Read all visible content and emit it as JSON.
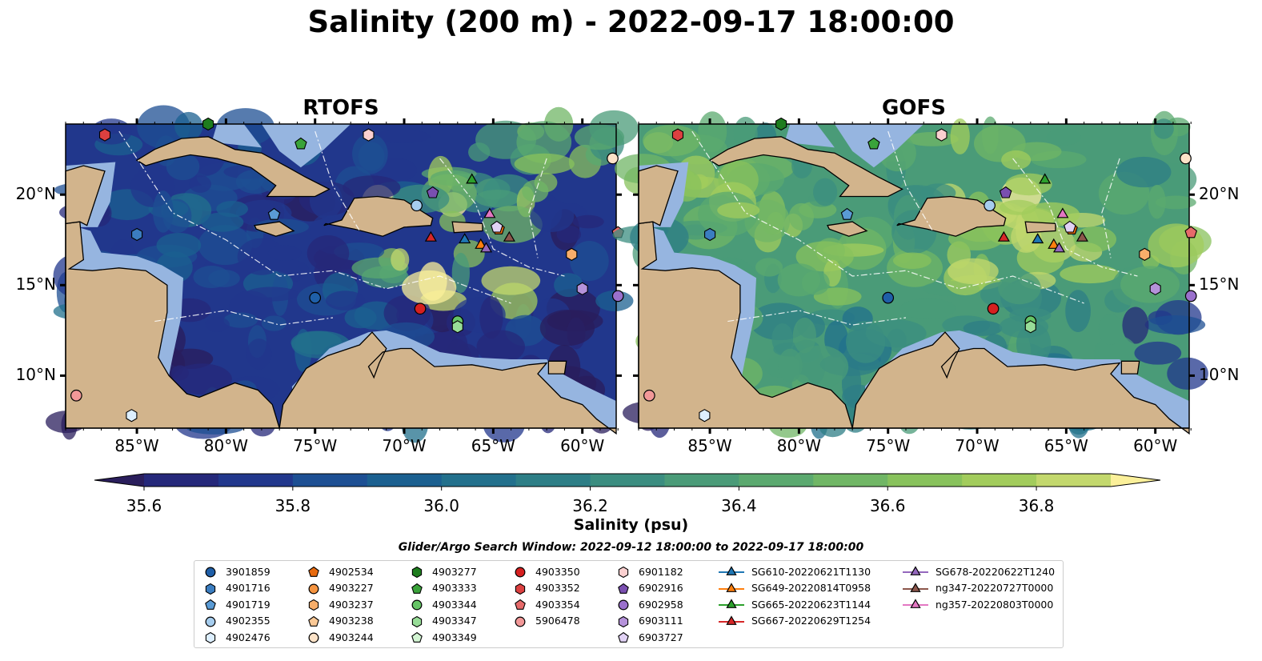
{
  "title": "Salinity (200 m) - 2022-09-17 18:00:00",
  "panels": [
    {
      "title": "RTOFS",
      "model": "rtofs"
    },
    {
      "title": "GOFS",
      "model": "gofs"
    }
  ],
  "lon_ticks": [
    "85°W",
    "80°W",
    "75°W",
    "70°W",
    "65°W",
    "60°W"
  ],
  "lat_ticks": [
    "20°N",
    "15°N",
    "10°N"
  ],
  "colorbar": {
    "label": "Salinity (psu)",
    "tick_labels": [
      "35.6",
      "35.8",
      "36.0",
      "36.2",
      "36.4",
      "36.6",
      "36.8"
    ],
    "colors": [
      "#2a1e5c",
      "#25287a",
      "#21378c",
      "#1d4f93",
      "#1b6090",
      "#22708c",
      "#2d7e86",
      "#3b8d80",
      "#4a9b78",
      "#5ba96f",
      "#70b665",
      "#88c25c",
      "#a2cc5c",
      "#c3d86d",
      "#fbf09a"
    ],
    "extend": "both"
  },
  "colors": {
    "land": "#d2b48c",
    "shelf": "#96b5e0",
    "low_salinity": "#2a1e5c",
    "high_salinity": "#fbf09a"
  },
  "search_window": "Glider/Argo Search Window: 2022-09-12 18:00:00 to 2022-09-17 18:00:00",
  "legend": [
    {
      "label": "3901859",
      "marker": "circle",
      "color": "#1f5fa8"
    },
    {
      "label": "4901716",
      "marker": "hexagon",
      "color": "#3b7dc0"
    },
    {
      "label": "4901719",
      "marker": "pentagon",
      "color": "#5a9bd5"
    },
    {
      "label": "4902355",
      "marker": "circle",
      "color": "#a6cdee"
    },
    {
      "label": "4902476",
      "marker": "hexagon",
      "color": "#ddefff"
    },
    {
      "label": "4902534",
      "marker": "pentagon",
      "color": "#e86a0e"
    },
    {
      "label": "4903227",
      "marker": "circle",
      "color": "#f59440"
    },
    {
      "label": "4903237",
      "marker": "hexagon",
      "color": "#f8ae6a"
    },
    {
      "label": "4903238",
      "marker": "pentagon",
      "color": "#fbc996"
    },
    {
      "label": "4903244",
      "marker": "circle",
      "color": "#fde3c8"
    },
    {
      "label": "4903277",
      "marker": "hexagon",
      "color": "#1e7d1e"
    },
    {
      "label": "4903333",
      "marker": "pentagon",
      "color": "#3aa33a"
    },
    {
      "label": "4903344",
      "marker": "circle",
      "color": "#66c466"
    },
    {
      "label": "4903347",
      "marker": "hexagon",
      "color": "#98dd98"
    },
    {
      "label": "4903349",
      "marker": "pentagon",
      "color": "#d3f5d3"
    },
    {
      "label": "4903350",
      "marker": "circle",
      "color": "#d62020"
    },
    {
      "label": "4903352",
      "marker": "hexagon",
      "color": "#dc4040"
    },
    {
      "label": "4903354",
      "marker": "pentagon",
      "color": "#e66a6a"
    },
    {
      "label": "5906478",
      "marker": "circle",
      "color": "#f29898"
    },
    {
      "label": "6901182",
      "marker": "hexagon",
      "color": "#fbd0d0"
    },
    {
      "label": "6902916",
      "marker": "pentagon",
      "color": "#7a4fb0"
    },
    {
      "label": "6902958",
      "marker": "circle",
      "color": "#9a70cc"
    },
    {
      "label": "6903111",
      "marker": "hexagon",
      "color": "#b592da"
    },
    {
      "label": "6903727",
      "marker": "pentagon",
      "color": "#e1d2f5"
    },
    {
      "label": "SG610-20220621T1130",
      "marker": "triangle",
      "color": "#1f77b4"
    },
    {
      "label": "SG649-20220814T0958",
      "marker": "triangle",
      "color": "#ff7f0e"
    },
    {
      "label": "SG665-20220623T1144",
      "marker": "triangle",
      "color": "#2ca02c"
    },
    {
      "label": "SG667-20220629T1254",
      "marker": "triangle",
      "color": "#d62728"
    },
    {
      "label": "SG678-20220622T1240",
      "marker": "triangle",
      "color": "#9467bd"
    },
    {
      "label": "ng347-20220727T0000",
      "marker": "triangle",
      "color": "#8c564b"
    },
    {
      "label": "ng357-20220803T0000",
      "marker": "triangle",
      "color": "#e377c2"
    }
  ],
  "map_markers": [
    {
      "id": "3901859",
      "lon": -75.0,
      "lat": 14.3
    },
    {
      "id": "4901716",
      "lon": -85.0,
      "lat": 17.8
    },
    {
      "id": "4901719",
      "lon": -77.3,
      "lat": 18.9
    },
    {
      "id": "4902355",
      "lon": -69.3,
      "lat": 19.4
    },
    {
      "id": "4902476",
      "lon": -85.3,
      "lat": 7.8
    },
    {
      "id": "4902534",
      "lon": -64.7,
      "lat": 18.1
    },
    {
      "id": "4903244",
      "lon": -58.3,
      "lat": 22.0
    },
    {
      "id": "4903277",
      "lon": -81.0,
      "lat": 23.9
    },
    {
      "id": "4903333",
      "lon": -75.8,
      "lat": 22.8
    },
    {
      "id": "4903344",
      "lon": -67.0,
      "lat": 13.0
    },
    {
      "id": "4903347",
      "lon": -67.0,
      "lat": 12.7
    },
    {
      "id": "4903350",
      "lon": -69.1,
      "lat": 13.7
    },
    {
      "id": "4903352",
      "lon": -86.8,
      "lat": 23.3
    },
    {
      "id": "4903354",
      "lon": -58.0,
      "lat": 17.9
    },
    {
      "id": "5906478",
      "lon": -88.4,
      "lat": 8.9
    },
    {
      "id": "6901182",
      "lon": -72.0,
      "lat": 23.3
    },
    {
      "id": "6902916",
      "lon": -68.4,
      "lat": 20.1
    },
    {
      "id": "6902958",
      "lon": -58.0,
      "lat": 14.4
    },
    {
      "id": "6903111",
      "lon": -60.0,
      "lat": 14.8
    },
    {
      "id": "6903727",
      "lon": -64.8,
      "lat": 18.2
    },
    {
      "id": "4903237",
      "lon": -60.6,
      "lat": 16.7
    },
    {
      "id": "SG610-20220621T1130",
      "lon": -66.6,
      "lat": 17.5
    },
    {
      "id": "SG649-20220814T0958",
      "lon": -65.7,
      "lat": 17.2
    },
    {
      "id": "SG665-20220623T1144",
      "lon": -66.2,
      "lat": 20.8
    },
    {
      "id": "SG667-20220629T1254",
      "lon": -68.5,
      "lat": 17.6
    },
    {
      "id": "SG678-20220622T1240",
      "lon": -65.4,
      "lat": 17.0
    },
    {
      "id": "ng347-20220727T0000",
      "lon": -64.1,
      "lat": 17.6
    },
    {
      "id": "ng357-20220803T0000",
      "lon": -65.2,
      "lat": 18.9
    }
  ]
}
